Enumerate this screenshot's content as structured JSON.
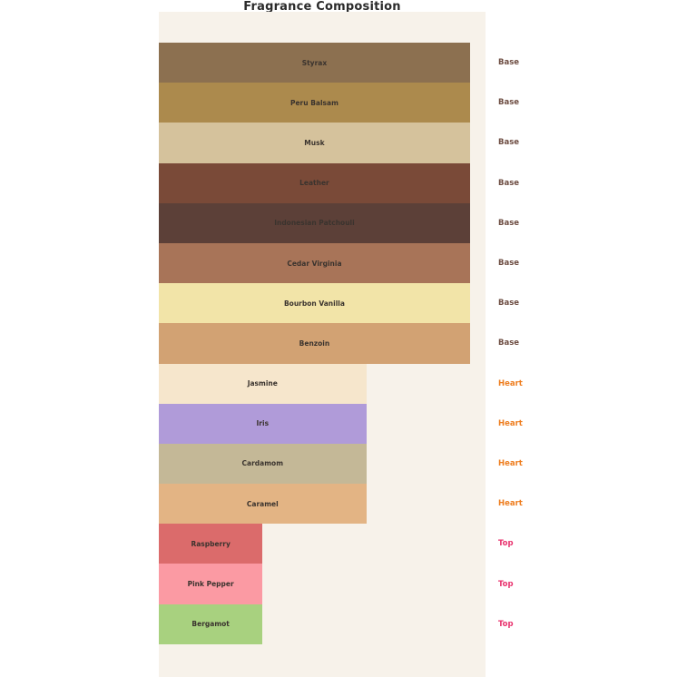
{
  "title": "Fragrance Composition",
  "colors": {
    "page_bg": "#ffffff",
    "chart_bg": "#f7f2ea",
    "bar_label_color": "#3a332e",
    "title_color": "#2b2b2b",
    "group_label_colors": {
      "Base": "#6d4c41",
      "Heart": "#ee7d1e",
      "Top": "#e8336e"
    }
  },
  "chart_data": {
    "type": "bar",
    "orientation": "horizontal",
    "title": "Fragrance Composition",
    "xlabel": "",
    "ylabel": "",
    "grid": false,
    "axes_visible": false,
    "legend_position": "right-of-bars",
    "xlim": [
      0,
      3.15
    ],
    "categories": [
      "Styrax",
      "Peru Balsam",
      "Musk",
      "Leather",
      "Indonesian Patchouli",
      "Cedar Virginia",
      "Bourbon Vanilla",
      "Benzoin",
      "Jasmine",
      "Iris",
      "Cardamom",
      "Caramel",
      "Raspberry",
      "Pink Pepper",
      "Bergamot"
    ],
    "values": [
      3,
      3,
      3,
      3,
      3,
      3,
      3,
      3,
      2,
      2,
      2,
      2,
      1,
      1,
      1
    ],
    "groups": [
      "Base",
      "Base",
      "Base",
      "Base",
      "Base",
      "Base",
      "Base",
      "Base",
      "Heart",
      "Heart",
      "Heart",
      "Heart",
      "Top",
      "Top",
      "Top"
    ],
    "bar_colors": [
      "#8c7050",
      "#ac8a4d",
      "#d5c29c",
      "#7a4a38",
      "#5c4038",
      "#a87458",
      "#f2e4a8",
      "#d2a273",
      "#f6e6cc",
      "#b09bd9",
      "#c4b897",
      "#e3b484",
      "#db6b6b",
      "#fb9aa3",
      "#a8d17f"
    ]
  }
}
